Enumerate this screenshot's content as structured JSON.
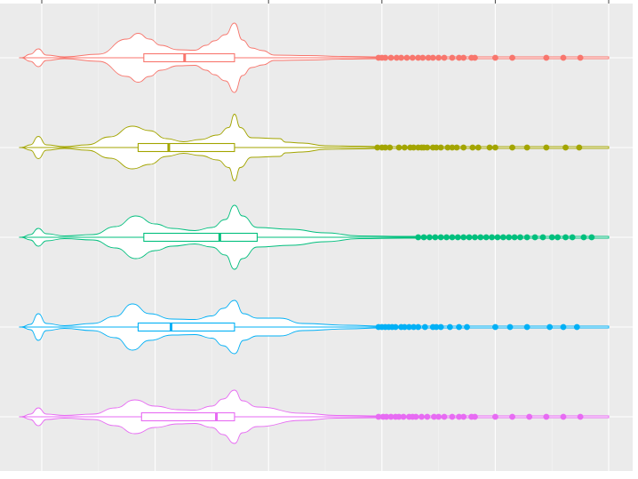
{
  "chart_data": {
    "type": "violin",
    "orientation": "horizontal",
    "title": "",
    "xlabel": "",
    "ylabel": "",
    "grid": true,
    "background": "#EBEBEB",
    "xlim": [
      -0.25,
      5.25
    ],
    "x_major_ticks": [
      0,
      1,
      2,
      3,
      4,
      5
    ],
    "series": [
      {
        "color": "#F8766D",
        "density": [
          [
            -0.18,
            0
          ],
          [
            -0.1,
            0.08
          ],
          [
            -0.03,
            0.2
          ],
          [
            0.04,
            0.06
          ],
          [
            0.2,
            0.02
          ],
          [
            0.5,
            0.08
          ],
          [
            0.75,
            0.42
          ],
          [
            0.85,
            0.55
          ],
          [
            0.95,
            0.42
          ],
          [
            1.05,
            0.28
          ],
          [
            1.2,
            0.18
          ],
          [
            1.35,
            0.17
          ],
          [
            1.45,
            0.28
          ],
          [
            1.52,
            0.38
          ],
          [
            1.62,
            0.52
          ],
          [
            1.7,
            0.78
          ],
          [
            1.77,
            0.4
          ],
          [
            1.85,
            0.22
          ],
          [
            1.95,
            0.16
          ],
          [
            2.05,
            0.06
          ],
          [
            2.35,
            0.05
          ],
          [
            2.65,
            0.03
          ],
          [
            3.0,
            0.02
          ],
          [
            4.0,
            0.02
          ],
          [
            5.0,
            0.02
          ]
        ],
        "box": {
          "q1": 0.9,
          "median": 1.26,
          "q3": 1.7,
          "whisker_low": -0.2,
          "whisker_high": 2.95
        },
        "outliers": [
          2.97,
          3.0,
          3.03,
          3.08,
          3.13,
          3.17,
          3.22,
          3.27,
          3.32,
          3.36,
          3.41,
          3.45,
          3.5,
          3.55,
          3.62,
          3.68,
          3.72,
          3.79,
          3.82,
          4.0,
          4.15,
          4.45,
          4.6,
          4.75
        ]
      },
      {
        "color": "#A3A500",
        "density": [
          [
            -0.18,
            0
          ],
          [
            -0.1,
            0.06
          ],
          [
            -0.03,
            0.25
          ],
          [
            0.04,
            0.06
          ],
          [
            0.2,
            0.02
          ],
          [
            0.4,
            0.06
          ],
          [
            0.6,
            0.24
          ],
          [
            0.8,
            0.48
          ],
          [
            0.95,
            0.38
          ],
          [
            1.1,
            0.2
          ],
          [
            1.25,
            0.13
          ],
          [
            1.4,
            0.18
          ],
          [
            1.55,
            0.28
          ],
          [
            1.65,
            0.45
          ],
          [
            1.7,
            0.75
          ],
          [
            1.75,
            0.45
          ],
          [
            1.85,
            0.22
          ],
          [
            2.1,
            0.2
          ],
          [
            2.15,
            0.12
          ],
          [
            2.3,
            0.1
          ],
          [
            2.5,
            0.04
          ],
          [
            2.8,
            0.03
          ],
          [
            3.0,
            0.02
          ],
          [
            4.0,
            0.02
          ],
          [
            5.0,
            0.02
          ]
        ],
        "box": {
          "q1": 0.85,
          "median": 1.12,
          "q3": 1.7,
          "whisker_low": -0.2,
          "whisker_high": 2.95
        },
        "outliers": [
          2.96,
          3.0,
          3.03,
          3.07,
          3.15,
          3.2,
          3.25,
          3.28,
          3.32,
          3.35,
          3.37,
          3.4,
          3.45,
          3.48,
          3.52,
          3.58,
          3.62,
          3.66,
          3.72,
          3.8,
          3.85,
          3.95,
          4.0,
          4.15,
          4.28,
          4.45,
          4.62,
          4.74
        ]
      },
      {
        "color": "#00BF7D",
        "density": [
          [
            -0.18,
            0
          ],
          [
            -0.1,
            0.06
          ],
          [
            -0.03,
            0.2
          ],
          [
            0.04,
            0.08
          ],
          [
            0.2,
            0.03
          ],
          [
            0.45,
            0.06
          ],
          [
            0.65,
            0.24
          ],
          [
            0.83,
            0.48
          ],
          [
            1.0,
            0.3
          ],
          [
            1.15,
            0.2
          ],
          [
            1.35,
            0.15
          ],
          [
            1.5,
            0.22
          ],
          [
            1.62,
            0.4
          ],
          [
            1.7,
            0.72
          ],
          [
            1.77,
            0.48
          ],
          [
            1.9,
            0.22
          ],
          [
            2.2,
            0.18
          ],
          [
            2.5,
            0.1
          ],
          [
            2.8,
            0.03
          ],
          [
            3.2,
            0.02
          ],
          [
            4.0,
            0.02
          ],
          [
            5.0,
            0.02
          ]
        ],
        "box": {
          "q1": 0.9,
          "median": 1.57,
          "q3": 1.9,
          "whisker_low": -0.2,
          "whisker_high": 3.3
        },
        "outliers": [
          3.32,
          3.37,
          3.42,
          3.47,
          3.52,
          3.57,
          3.62,
          3.67,
          3.72,
          3.77,
          3.82,
          3.87,
          3.92,
          3.97,
          4.02,
          4.07,
          4.12,
          4.17,
          4.22,
          4.28,
          4.35,
          4.42,
          4.5,
          4.55,
          4.62,
          4.68,
          4.78,
          4.85
        ]
      },
      {
        "color": "#00B0F6",
        "density": [
          [
            -0.18,
            0
          ],
          [
            -0.1,
            0.06
          ],
          [
            -0.03,
            0.3
          ],
          [
            0.04,
            0.08
          ],
          [
            0.2,
            0.03
          ],
          [
            0.45,
            0.08
          ],
          [
            0.65,
            0.24
          ],
          [
            0.8,
            0.52
          ],
          [
            0.95,
            0.3
          ],
          [
            1.15,
            0.18
          ],
          [
            1.35,
            0.17
          ],
          [
            1.5,
            0.25
          ],
          [
            1.6,
            0.42
          ],
          [
            1.7,
            0.6
          ],
          [
            1.78,
            0.3
          ],
          [
            1.9,
            0.2
          ],
          [
            2.1,
            0.2
          ],
          [
            2.3,
            0.08
          ],
          [
            2.7,
            0.04
          ],
          [
            3.0,
            0.02
          ],
          [
            4.0,
            0.02
          ],
          [
            5.0,
            0.02
          ]
        ],
        "box": {
          "q1": 0.85,
          "median": 1.14,
          "q3": 1.7,
          "whisker_low": -0.2,
          "whisker_high": 2.95
        },
        "outliers": [
          2.97,
          3.0,
          3.03,
          3.06,
          3.09,
          3.12,
          3.17,
          3.2,
          3.24,
          3.28,
          3.32,
          3.38,
          3.45,
          3.48,
          3.52,
          3.6,
          3.68,
          3.75,
          4.0,
          4.13,
          4.28,
          4.48,
          4.6,
          4.72
        ]
      },
      {
        "color": "#E76BF3",
        "density": [
          [
            -0.18,
            0
          ],
          [
            -0.1,
            0.06
          ],
          [
            -0.03,
            0.2
          ],
          [
            0.04,
            0.06
          ],
          [
            0.2,
            0.03
          ],
          [
            0.45,
            0.06
          ],
          [
            0.65,
            0.2
          ],
          [
            0.82,
            0.38
          ],
          [
            1.0,
            0.24
          ],
          [
            1.2,
            0.16
          ],
          [
            1.35,
            0.15
          ],
          [
            1.5,
            0.24
          ],
          [
            1.6,
            0.4
          ],
          [
            1.7,
            0.6
          ],
          [
            1.77,
            0.36
          ],
          [
            1.9,
            0.22
          ],
          [
            2.3,
            0.08
          ],
          [
            2.6,
            0.03
          ],
          [
            3.0,
            0.02
          ],
          [
            4.0,
            0.02
          ],
          [
            5.0,
            0.02
          ]
        ],
        "box": {
          "q1": 0.88,
          "median": 1.54,
          "q3": 1.7,
          "whisker_low": -0.2,
          "whisker_high": 2.95
        },
        "outliers": [
          2.97,
          3.01,
          3.04,
          3.08,
          3.12,
          3.15,
          3.19,
          3.24,
          3.27,
          3.3,
          3.35,
          3.4,
          3.46,
          3.5,
          3.55,
          3.62,
          3.68,
          3.72,
          3.79,
          3.82,
          4.0,
          4.15,
          4.3,
          4.45,
          4.6,
          4.75
        ]
      }
    ]
  }
}
